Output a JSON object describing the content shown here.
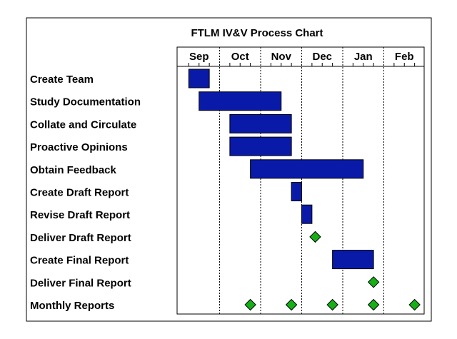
{
  "chart_data": {
    "type": "gantt",
    "title": "FTLM  IV&V Process Chart",
    "months": [
      "Sep",
      "Oct",
      "Nov",
      "Dec",
      "Jan",
      "Feb"
    ],
    "x_unit": "months from start of Sep",
    "tasks": [
      {
        "label": "Create Team",
        "start": 0.25,
        "end": 0.75,
        "kind": "bar"
      },
      {
        "label": "Study Documentation",
        "start": 0.5,
        "end": 2.5,
        "kind": "bar"
      },
      {
        "label": "Collate and Circulate",
        "start": 1.25,
        "end": 2.75,
        "kind": "bar"
      },
      {
        "label": "Proactive Opinions",
        "start": 1.25,
        "end": 2.75,
        "kind": "bar"
      },
      {
        "label": "Obtain Feedback",
        "start": 1.75,
        "end": 4.5,
        "kind": "bar"
      },
      {
        "label": "Create Draft Report",
        "start": 2.75,
        "end": 3.0,
        "kind": "bar"
      },
      {
        "label": "Revise Draft Report",
        "start": 3.0,
        "end": 3.25,
        "kind": "bar"
      },
      {
        "label": "Deliver Draft Report",
        "at": [
          3.33
        ],
        "kind": "milestone"
      },
      {
        "label": "Create Final Report",
        "start": 3.75,
        "end": 4.75,
        "kind": "bar"
      },
      {
        "label": "Deliver Final Report",
        "at": [
          4.75
        ],
        "kind": "milestone"
      },
      {
        "label": "Monthly Reports",
        "at": [
          1.75,
          2.75,
          3.75,
          4.75,
          5.75
        ],
        "kind": "milestone"
      }
    ],
    "colors": {
      "bar_fill": "#0a1aa8",
      "bar_stroke": "#000000",
      "milestone_fill": "#15b015",
      "milestone_stroke": "#000000"
    },
    "gridlines": "dotted vertical at month boundaries",
    "legend": "none"
  }
}
